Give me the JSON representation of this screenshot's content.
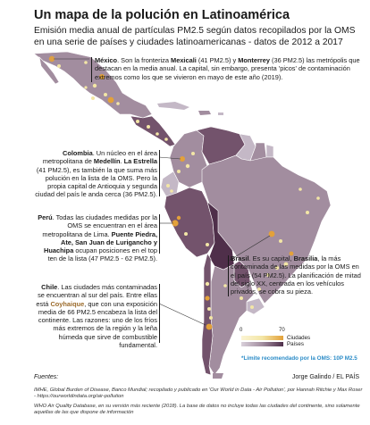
{
  "title": "Un mapa de la polución en Latinoamérica",
  "subtitle": "Emisión media anual de partículas PM2.5 según datos recopilados por la OMS en una serie de países y ciudades latinoamericanas - datos de 2012 a 2017",
  "annotations": {
    "mexico": {
      "name": "México",
      "text1": ". Son la fronteriza ",
      "city1": "Mexicali",
      "text2": " (41 PM2.5) y ",
      "city2": "Monterrey",
      "text3": " (36 PM2.5) las metrópolis que destacan en la media anual. La capital, sin embargo, presenta 'picos' de contaminación extremos como los que se vivieron en mayo de este año (2019)."
    },
    "colombia": {
      "name": "Colombia",
      "text1": ". Un núcleo en el área metropolitana de ",
      "city1": "Medellín",
      "text2": ". ",
      "city2": "La Estrella",
      "text3": " (41 PM2.5), es también la que suma más polución en la lista de la OMS. Pero la propia capital de Antioquia y segunda ciudad del país le anda cerca (36 PM2.5)."
    },
    "peru": {
      "name": "Perú",
      "text1": ". Todas las ciudades medidas por la OMS se encuentran en el área metropolitana de Lima. ",
      "city1": "Puente Piedra, Ate, San Juan de Lurigancho y Huachipa",
      "text2": " ocupan posiciones en el top ten de la lista (47 PM2.5 - 62 PM2.5)."
    },
    "brasil": {
      "name": "Brasil",
      "text1": ". Es su capital, ",
      "city1": "Brasilia",
      "text2": ", la más contaminada de las medidas por la OMS en el país (54 PM2.5). La planificación de mitad del siglo XX, centrada en los vehículos privados, se cobra su pieza."
    },
    "chile": {
      "name": "Chile",
      "text1": ". Las ciudades más contaminadas se encuentran al sur del país. Entre ellas está ",
      "city1": "Coyhaique",
      "text2": ", que con una exposición media de 66 PM2.5 encabeza la lista del continente. Las razones: uno de los fríos más extremos de la región y la leña húmeda que sirve de combustible fundamental."
    }
  },
  "legend": {
    "min": "0",
    "max": "70",
    "cities_label": "Ciudades",
    "countries_label": "Países",
    "who_limit": "*Límite recomendado por la OMS: 10P M2.5"
  },
  "credit": "Jorge Galindo / EL PAÍS",
  "sources": {
    "title": "Fuentes:",
    "line1": "IMHE, Global Burden of Disease, Banco Mundial; recopilado y publicado en 'Our World in Data - Air Pollution', por Hannah Ritchie y Max Roser - https://ourworldindata.org/air-pollution",
    "line2": "WHO Air Quality Database, en su versión más reciente (2018). La base de datos no incluye todas las ciudades del continente, sino solamente aquellas de las que dispone de información"
  },
  "colors": {
    "ocean": "#ffffff",
    "land_light": "#c4b8c6",
    "land_mid": "#a28d9f",
    "land_dark": "#73536c",
    "land_darkest": "#4f2f4a",
    "city_low": "#f3e6a6",
    "city_high": "#e3a13a",
    "accent": "#9b6b2b",
    "who_blue": "#2a8bc7"
  }
}
